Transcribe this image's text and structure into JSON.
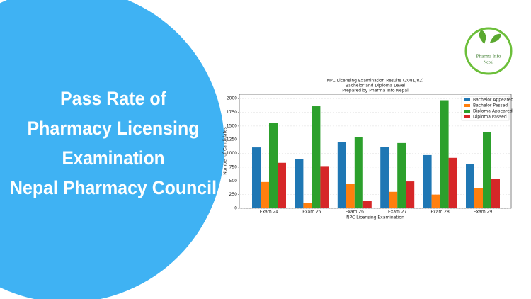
{
  "banner": {
    "headline": [
      "Pass Rate of",
      "Pharmacy Licensing",
      "Examination",
      "Nepal Pharmacy Council"
    ],
    "logo_text": [
      "Pharma Info",
      "Nepal"
    ]
  },
  "chart_data": {
    "type": "bar",
    "title": "NPC Licensing Examination Results (2081/82)",
    "subtitle": "Bachelor and Diploma Level",
    "credit": "Prepared by Pharma Info Nepal",
    "x_label": "NPC Licensing Examination",
    "y_label": "Number of Candidates",
    "categories": [
      "Exam 24",
      "Exam 25",
      "Exam 26",
      "Exam 27",
      "Exam 28",
      "Exam 29"
    ],
    "series": [
      {
        "name": "Bachelor Appeared",
        "color": "#1f77b4",
        "values": [
          1110,
          900,
          1210,
          1120,
          970,
          810
        ]
      },
      {
        "name": "Bachelor Passed",
        "color": "#ff7f0e",
        "values": [
          480,
          100,
          450,
          300,
          250,
          370
        ]
      },
      {
        "name": "Diploma Appeared",
        "color": "#2ca02c",
        "values": [
          1560,
          1860,
          1300,
          1190,
          1970,
          1390
        ]
      },
      {
        "name": "Diploma Passed",
        "color": "#d62728",
        "values": [
          830,
          770,
          130,
          490,
          920,
          530
        ]
      }
    ],
    "ylim": [
      0,
      2080
    ],
    "yticks": [
      0,
      250,
      500,
      750,
      1000,
      1250,
      1500,
      1750,
      2000
    ],
    "grid": true,
    "legend": "upper right"
  }
}
